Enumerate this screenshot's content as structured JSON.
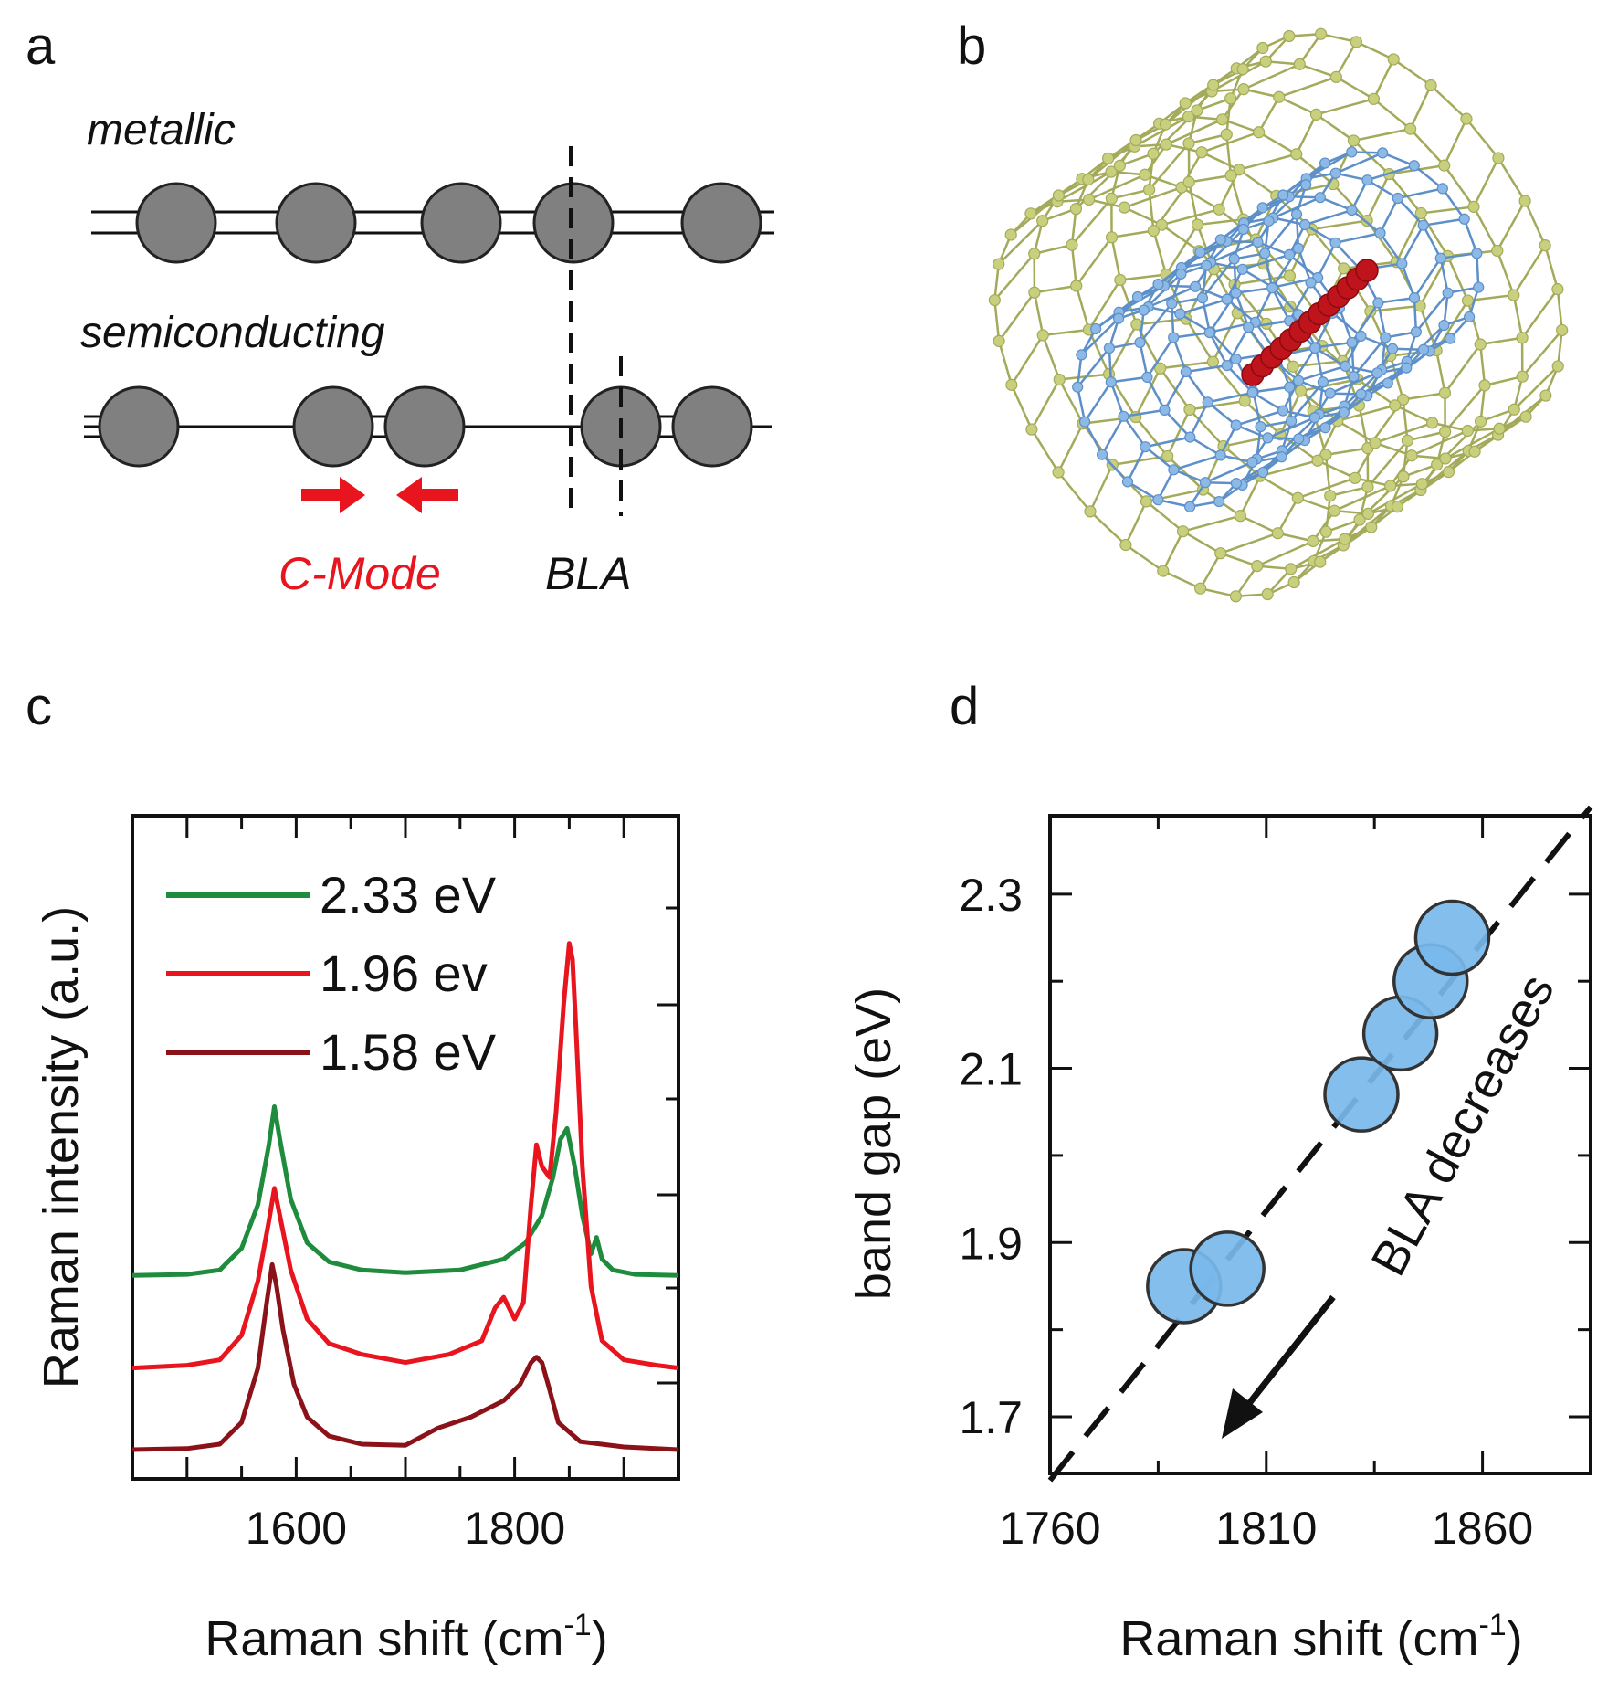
{
  "panels": {
    "a": {
      "label": "a",
      "metallic_label": "metallic",
      "semiconducting_label": "semiconducting",
      "cmode_label": "C-Mode",
      "bla_label": "BLA",
      "colors": {
        "atom": "#808080",
        "cmode": "#e8141e"
      }
    },
    "b": {
      "label": "b",
      "colors": {
        "outer_tube": "#c8cf7d",
        "inner_tube": "#8db9e6",
        "chain": "#c0141c"
      }
    },
    "c": {
      "label": "c"
    },
    "d": {
      "label": "d",
      "annotation": "BLA decreases"
    }
  },
  "chart_data": [
    {
      "panel": "c",
      "type": "line",
      "xlabel": "Raman shift (cm",
      "xlabel_sup": "-1",
      "xlabel_close": ")",
      "ylabel": "Raman intensity (a.u.)",
      "xlim": [
        1450,
        1950
      ],
      "ylim": [
        0,
        1
      ],
      "xticks": [
        1600,
        1800
      ],
      "yticks_shown": false,
      "legend_position": "top-left",
      "series": [
        {
          "name": "2.33 eV",
          "color": "#1e8c3c",
          "x": [
            1450,
            1500,
            1530,
            1550,
            1565,
            1575,
            1580,
            1585,
            1595,
            1610,
            1630,
            1660,
            1700,
            1750,
            1790,
            1810,
            1825,
            1835,
            1842,
            1848,
            1855,
            1862,
            1870,
            1875,
            1880,
            1890,
            1910,
            1950
          ],
          "y": [
            0.32,
            0.322,
            0.33,
            0.37,
            0.45,
            0.56,
            0.63,
            0.57,
            0.46,
            0.38,
            0.345,
            0.33,
            0.325,
            0.33,
            0.35,
            0.38,
            0.43,
            0.5,
            0.57,
            0.59,
            0.52,
            0.43,
            0.36,
            0.39,
            0.35,
            0.33,
            0.322,
            0.32
          ]
        },
        {
          "name": "1.96 ev",
          "color": "#e8141e",
          "x": [
            1450,
            1500,
            1530,
            1550,
            1565,
            1575,
            1580,
            1585,
            1595,
            1610,
            1630,
            1660,
            1700,
            1740,
            1770,
            1782,
            1790,
            1800,
            1808,
            1815,
            1820,
            1825,
            1832,
            1838,
            1845,
            1850,
            1853,
            1856,
            1862,
            1870,
            1880,
            1900,
            1930,
            1950
          ],
          "y": [
            0.15,
            0.155,
            0.165,
            0.21,
            0.31,
            0.42,
            0.48,
            0.43,
            0.33,
            0.24,
            0.195,
            0.175,
            0.16,
            0.175,
            0.2,
            0.26,
            0.28,
            0.24,
            0.27,
            0.45,
            0.56,
            0.52,
            0.5,
            0.62,
            0.82,
            0.93,
            0.9,
            0.78,
            0.52,
            0.3,
            0.2,
            0.165,
            0.155,
            0.15
          ]
        },
        {
          "name": "1.58 eV",
          "color": "#8b1218",
          "x": [
            1450,
            1500,
            1530,
            1550,
            1565,
            1573,
            1578,
            1582,
            1588,
            1598,
            1610,
            1630,
            1660,
            1700,
            1730,
            1760,
            1790,
            1805,
            1815,
            1820,
            1825,
            1832,
            1840,
            1860,
            1900,
            1950
          ],
          "y": [
            0,
            0.002,
            0.01,
            0.05,
            0.15,
            0.27,
            0.34,
            0.3,
            0.22,
            0.12,
            0.06,
            0.025,
            0.01,
            0.008,
            0.04,
            0.06,
            0.09,
            0.12,
            0.16,
            0.17,
            0.16,
            0.11,
            0.05,
            0.015,
            0.005,
            0
          ]
        }
      ]
    },
    {
      "panel": "d",
      "type": "scatter",
      "xlabel": "Raman shift (cm",
      "xlabel_sup": "-1",
      "xlabel_close": ")",
      "ylabel": "band gap (eV)",
      "xlim": [
        1760,
        1885
      ],
      "ylim": [
        1.635,
        2.39
      ],
      "xticks": [
        1760,
        1810,
        1860
      ],
      "yticks": [
        1.7,
        1.9,
        2.1,
        2.3
      ],
      "ytick_labels": [
        "1.7",
        "1.9",
        "2.1",
        "2.3"
      ],
      "point_color": "#78b9ea",
      "points": [
        {
          "x": 1791,
          "y": 1.85
        },
        {
          "x": 1801,
          "y": 1.87
        },
        {
          "x": 1832,
          "y": 2.07
        },
        {
          "x": 1841,
          "y": 2.14
        },
        {
          "x": 1848,
          "y": 2.2
        },
        {
          "x": 1853,
          "y": 2.25
        }
      ],
      "fit_line": {
        "x": [
          1760,
          1885
        ],
        "y": [
          1.627,
          2.4
        ]
      }
    }
  ]
}
